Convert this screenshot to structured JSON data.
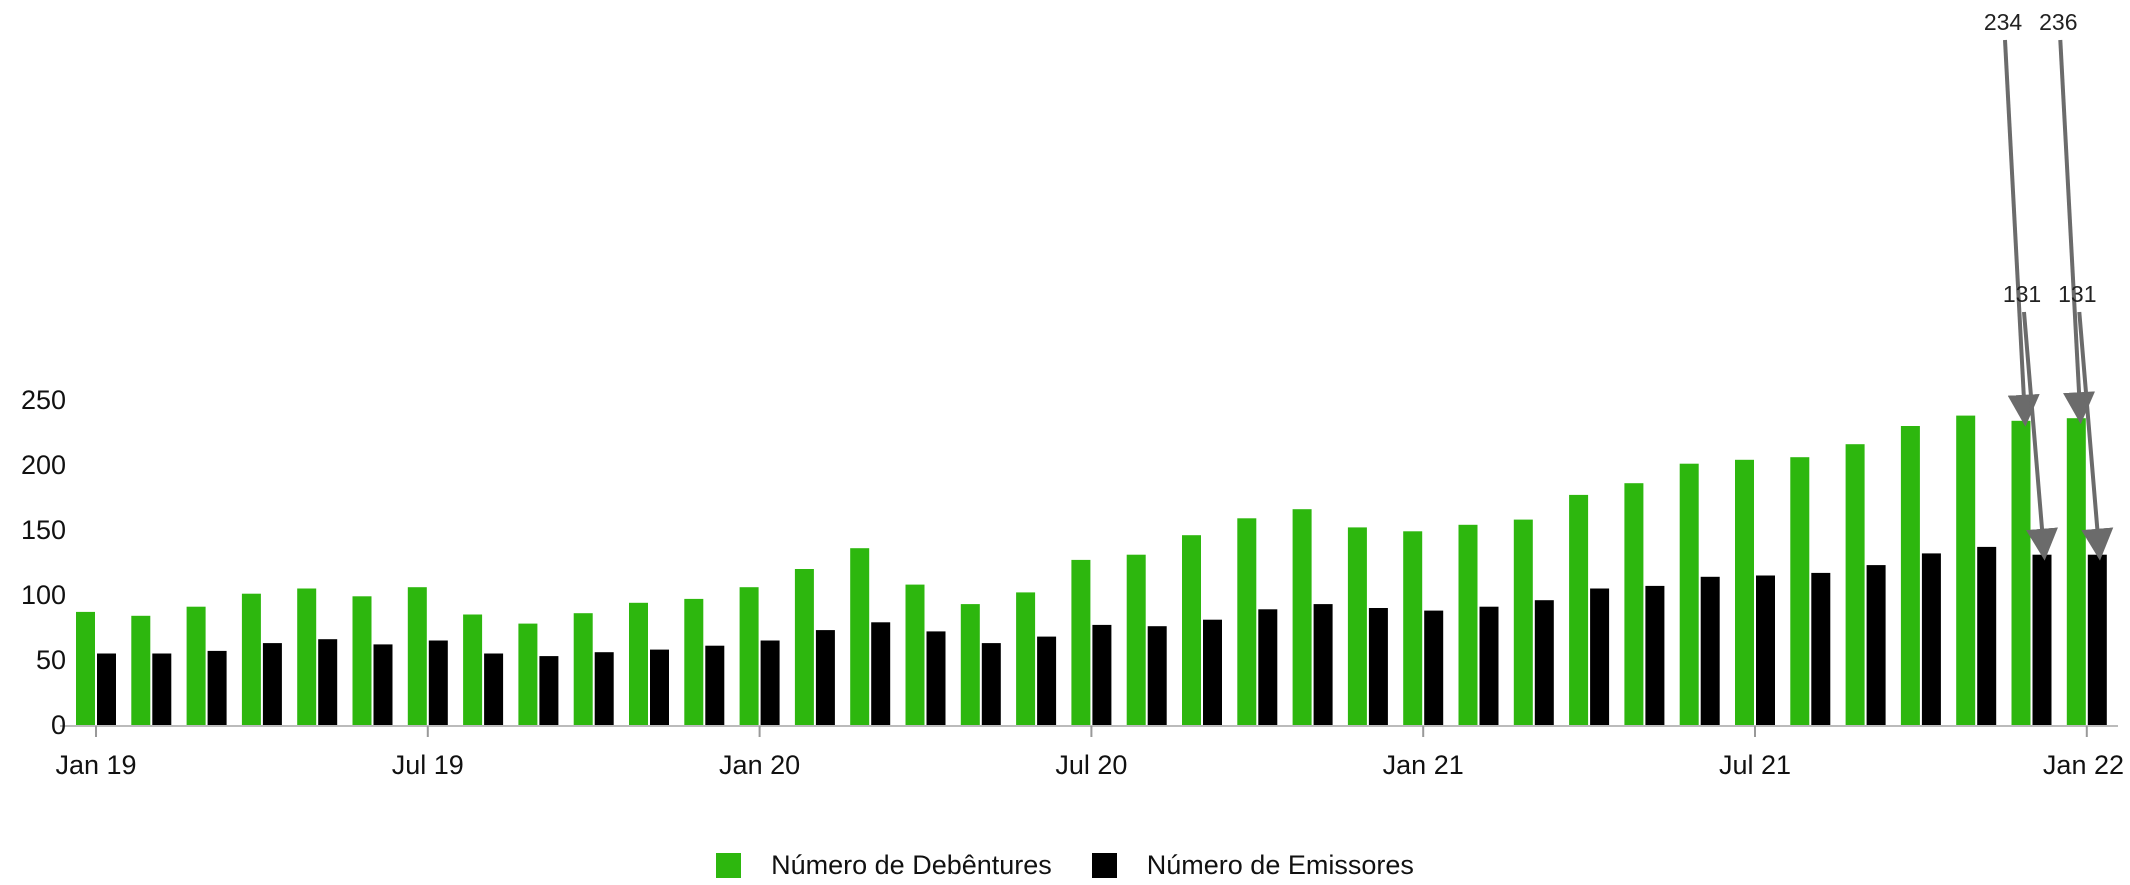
{
  "chart_data": {
    "type": "bar",
    "title": "",
    "xlabel": "",
    "ylabel": "",
    "ylim": [
      0,
      260
    ],
    "y_ticks": [
      0,
      50,
      100,
      150,
      200,
      250
    ],
    "grid": false,
    "legend_position": "bottom-center",
    "x_ticks": [
      {
        "label": "Jan 19",
        "index": 0
      },
      {
        "label": "Jul 19",
        "index": 6
      },
      {
        "label": "Jan 20",
        "index": 12
      },
      {
        "label": "Jul 20",
        "index": 18
      },
      {
        "label": "Jan 21",
        "index": 24
      },
      {
        "label": "Jul 21",
        "index": 30
      },
      {
        "label": "Jan 22",
        "index": 36
      }
    ],
    "series": [
      {
        "name": "Número de Debêntures",
        "color": "#2db70e",
        "values": [
          87,
          84,
          91,
          101,
          105,
          99,
          106,
          85,
          78,
          86,
          94,
          97,
          106,
          120,
          136,
          108,
          93,
          102,
          127,
          131,
          146,
          159,
          166,
          152,
          149,
          154,
          158,
          177,
          186,
          201,
          204,
          206,
          216,
          230,
          238,
          234,
          236
        ]
      },
      {
        "name": "Número de Emissores",
        "color": "#000000",
        "values": [
          55,
          55,
          57,
          63,
          66,
          62,
          65,
          55,
          53,
          56,
          58,
          61,
          65,
          73,
          79,
          72,
          63,
          68,
          77,
          76,
          81,
          89,
          93,
          90,
          88,
          91,
          96,
          105,
          107,
          114,
          115,
          117,
          123,
          132,
          137,
          131,
          131
        ]
      }
    ],
    "annotations": [
      {
        "text": "234",
        "series": 0,
        "index": 35
      },
      {
        "text": "236",
        "series": 0,
        "index": 36
      },
      {
        "text": "131",
        "series": 1,
        "index": 35
      },
      {
        "text": "131",
        "series": 1,
        "index": 36
      }
    ]
  }
}
